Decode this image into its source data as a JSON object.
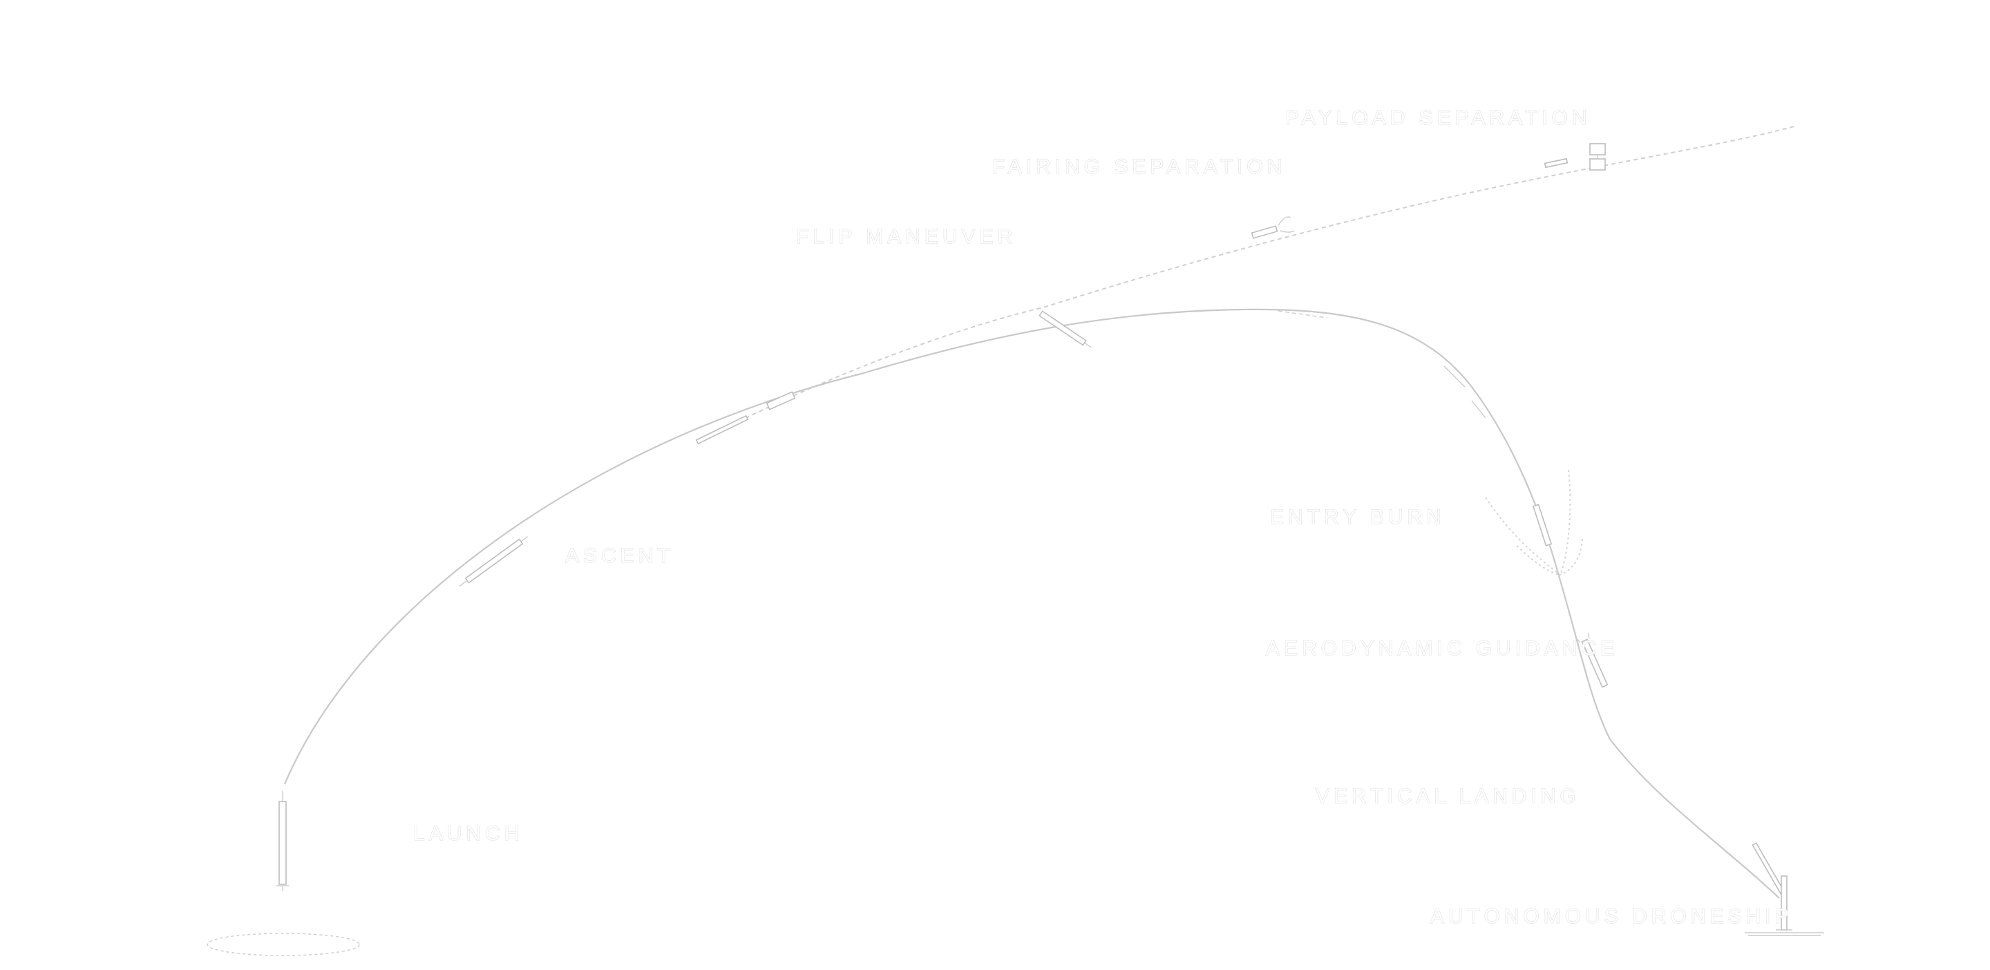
{
  "labels": {
    "launch": "LAUNCH",
    "ascent": "ASCENT",
    "flip_maneuver": "FLIP MANEUVER",
    "fairing_separation": "FAIRING SEPARATION",
    "payload_separation": "PAYLOAD SEPARATION",
    "entry_burn": "ENTRY BURN",
    "aerodynamic_guidance": "AERODYNAMIC GUIDANCE",
    "vertical_landing": "VERTICAL LANDING",
    "autonomous_drone_ship": "AUTONOMOUS DRONESHIP"
  },
  "colors": {
    "background": "#ffffff",
    "line": "#c8c8c8",
    "text_outline": "#dcdcdc"
  }
}
